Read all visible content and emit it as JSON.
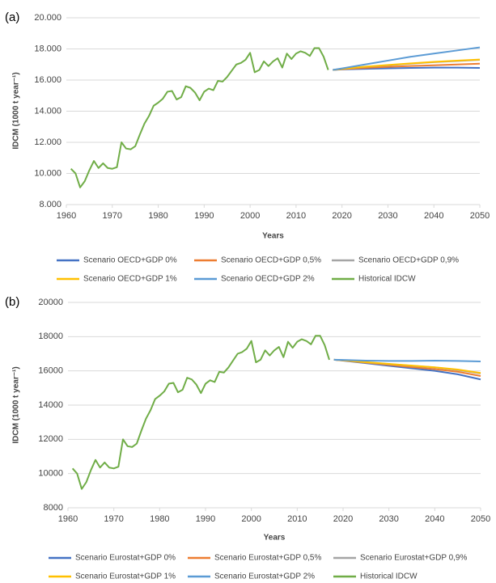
{
  "chart_data": [
    {
      "type": "line",
      "panel_label": "(a)",
      "x_label": "Years",
      "y_label": "IDCM (1000 t year⁻¹)",
      "xlim": [
        1960,
        2050
      ],
      "xticks": [
        1960,
        1970,
        1980,
        1990,
        2000,
        2010,
        2020,
        2030,
        2040,
        2050
      ],
      "ylim": [
        8,
        20
      ],
      "yticks": [
        {
          "value": 8,
          "label": "8.000"
        },
        {
          "value": 10,
          "label": "10.000"
        },
        {
          "value": 12,
          "label": "12.000"
        },
        {
          "value": 14,
          "label": "14.000"
        },
        {
          "value": 16,
          "label": "16.000"
        },
        {
          "value": 18,
          "label": "18.000"
        },
        {
          "value": 20,
          "label": "20.000"
        }
      ],
      "grid": true,
      "series": [
        {
          "name": "Scenario OECD+GDP 0%",
          "color": "#4472c4",
          "x": [
            2018,
            2020,
            2025,
            2030,
            2035,
            2040,
            2045,
            2050
          ],
          "values": [
            16.65,
            16.68,
            16.72,
            16.75,
            16.78,
            16.8,
            16.8,
            16.78
          ]
        },
        {
          "name": "Scenario OECD+GDP 0,5%",
          "color": "#ed7d31",
          "x": [
            2018,
            2020,
            2025,
            2030,
            2035,
            2040,
            2045,
            2050
          ],
          "values": [
            16.65,
            16.7,
            16.78,
            16.85,
            16.9,
            16.95,
            17.0,
            17.05
          ]
        },
        {
          "name": "Scenario OECD+GDP 0,9%",
          "color": "#a5a5a5",
          "x": [
            2018,
            2020,
            2025,
            2030,
            2035,
            2040,
            2045,
            2050
          ],
          "values": [
            16.65,
            16.72,
            16.85,
            16.95,
            17.05,
            17.15,
            17.22,
            17.3
          ]
        },
        {
          "name": "Scenario OECD+GDP 1%",
          "color": "#ffc000",
          "x": [
            2018,
            2020,
            2025,
            2030,
            2035,
            2040,
            2045,
            2050
          ],
          "values": [
            16.65,
            16.72,
            16.86,
            16.97,
            17.07,
            17.17,
            17.25,
            17.32
          ]
        },
        {
          "name": "Scenario OECD+GDP 2%",
          "color": "#5b9bd5",
          "x": [
            2018,
            2020,
            2025,
            2030,
            2035,
            2040,
            2045,
            2050
          ],
          "values": [
            16.65,
            16.75,
            17.0,
            17.25,
            17.5,
            17.7,
            17.9,
            18.1
          ]
        },
        {
          "name": "Historical IDCW",
          "color": "#70ad47",
          "x": [
            1961,
            1962,
            1963,
            1964,
            1965,
            1966,
            1967,
            1968,
            1969,
            1970,
            1971,
            1972,
            1973,
            1974,
            1975,
            1976,
            1977,
            1978,
            1979,
            1980,
            1981,
            1982,
            1983,
            1984,
            1985,
            1986,
            1987,
            1988,
            1989,
            1990,
            1991,
            1992,
            1993,
            1994,
            1995,
            1996,
            1997,
            1998,
            1999,
            2000,
            2001,
            2002,
            2003,
            2004,
            2005,
            2006,
            2007,
            2008,
            2009,
            2010,
            2011,
            2012,
            2013,
            2014,
            2015,
            2016,
            2017
          ],
          "values": [
            10.3,
            10.0,
            9.1,
            9.5,
            10.2,
            10.8,
            10.35,
            10.65,
            10.35,
            10.3,
            10.4,
            12.0,
            11.6,
            11.55,
            11.75,
            12.5,
            13.2,
            13.7,
            14.35,
            14.55,
            14.8,
            15.25,
            15.3,
            14.75,
            14.9,
            15.6,
            15.5,
            15.2,
            14.7,
            15.25,
            15.45,
            15.35,
            15.95,
            15.9,
            16.2,
            16.6,
            17.0,
            17.1,
            17.3,
            17.75,
            16.5,
            16.65,
            17.2,
            16.9,
            17.2,
            17.4,
            16.8,
            17.7,
            17.35,
            17.7,
            17.85,
            17.75,
            17.55,
            18.05,
            18.05,
            17.5,
            16.65
          ]
        }
      ]
    },
    {
      "type": "line",
      "panel_label": "(b)",
      "x_label": "Years",
      "y_label": "IDCM (1000 t year⁻¹)",
      "xlim": [
        1960,
        2050
      ],
      "xticks": [
        1960,
        1970,
        1980,
        1990,
        2000,
        2010,
        2020,
        2030,
        2040,
        2050
      ],
      "ylim": [
        8000,
        20000
      ],
      "yticks": [
        8000,
        10000,
        12000,
        14000,
        16000,
        18000,
        20000
      ],
      "grid": true,
      "series": [
        {
          "name": "Scenario Eurostat+GDP 0%",
          "color": "#4472c4",
          "x": [
            2018,
            2020,
            2025,
            2030,
            2035,
            2040,
            2045,
            2050
          ],
          "values": [
            16650,
            16600,
            16450,
            16300,
            16150,
            16000,
            15800,
            15500
          ]
        },
        {
          "name": "Scenario Eurostat+GDP 0,5%",
          "color": "#ed7d31",
          "x": [
            2018,
            2020,
            2025,
            2030,
            2035,
            2040,
            2045,
            2050
          ],
          "values": [
            16650,
            16610,
            16480,
            16350,
            16220,
            16100,
            15950,
            15700
          ]
        },
        {
          "name": "Scenario Eurostat+GDP 0,9%",
          "color": "#a5a5a5",
          "x": [
            2018,
            2020,
            2025,
            2030,
            2035,
            2040,
            2045,
            2050
          ],
          "values": [
            16650,
            16620,
            16500,
            16400,
            16300,
            16200,
            16050,
            15850
          ]
        },
        {
          "name": "Scenario Eurostat+GDP 1%",
          "color": "#ffc000",
          "x": [
            2018,
            2020,
            2025,
            2030,
            2035,
            2040,
            2045,
            2050
          ],
          "values": [
            16650,
            16620,
            16510,
            16410,
            16310,
            16210,
            16080,
            15880
          ]
        },
        {
          "name": "Scenario Eurostat+GDP 2%",
          "color": "#5b9bd5",
          "x": [
            2018,
            2020,
            2025,
            2030,
            2035,
            2040,
            2045,
            2050
          ],
          "values": [
            16650,
            16640,
            16600,
            16580,
            16580,
            16600,
            16580,
            16550
          ]
        },
        {
          "name": "Historical IDCW",
          "color": "#70ad47",
          "x": [
            1961,
            1962,
            1963,
            1964,
            1965,
            1966,
            1967,
            1968,
            1969,
            1970,
            1971,
            1972,
            1973,
            1974,
            1975,
            1976,
            1977,
            1978,
            1979,
            1980,
            1981,
            1982,
            1983,
            1984,
            1985,
            1986,
            1987,
            1988,
            1989,
            1990,
            1991,
            1992,
            1993,
            1994,
            1995,
            1996,
            1997,
            1998,
            1999,
            2000,
            2001,
            2002,
            2003,
            2004,
            2005,
            2006,
            2007,
            2008,
            2009,
            2010,
            2011,
            2012,
            2013,
            2014,
            2015,
            2016,
            2017
          ],
          "values": [
            10300,
            10000,
            9100,
            9500,
            10200,
            10800,
            10350,
            10650,
            10350,
            10300,
            10400,
            12000,
            11600,
            11550,
            11750,
            12500,
            13200,
            13700,
            14350,
            14550,
            14800,
            15250,
            15300,
            14750,
            14900,
            15600,
            15500,
            15200,
            14700,
            15250,
            15450,
            15350,
            15950,
            15900,
            16200,
            16600,
            17000,
            17100,
            17300,
            17750,
            16500,
            16650,
            17200,
            16900,
            17200,
            17400,
            16800,
            17700,
            17350,
            17700,
            17850,
            17750,
            17550,
            18050,
            18050,
            17500,
            16650
          ]
        }
      ]
    }
  ]
}
